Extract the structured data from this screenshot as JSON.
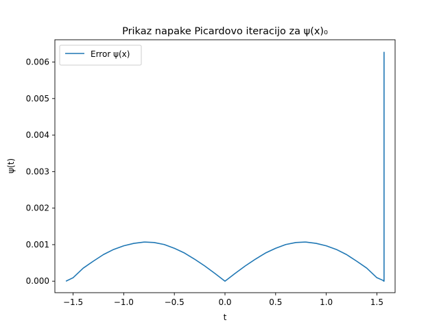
{
  "chart_data": {
    "type": "line",
    "title": "Prikaz napake Picardovo iteracijo za ψ(x)₀",
    "xlabel": "t",
    "ylabel": "ψ(t)",
    "xlim": [
      -1.68,
      1.68
    ],
    "ylim": [
      -0.000315,
      0.00661
    ],
    "xticks": [
      -1.5,
      -1.0,
      -0.5,
      0.0,
      0.5,
      1.0,
      1.5
    ],
    "xtick_labels": [
      "−1.5",
      "−1.0",
      "−0.5",
      "0.0",
      "0.5",
      "1.0",
      "1.5"
    ],
    "yticks": [
      0.0,
      0.001,
      0.002,
      0.003,
      0.004,
      0.005,
      0.006
    ],
    "ytick_labels": [
      "0.000",
      "0.001",
      "0.002",
      "0.003",
      "0.004",
      "0.005",
      "0.006"
    ],
    "legend": {
      "placement": "top-left",
      "entries": [
        "Error ψ(x)"
      ]
    },
    "grid": false,
    "colors": {
      "series": "#1f77b4",
      "axis": "#000000"
    },
    "series": [
      {
        "name": "Error ψ(x)",
        "x": [
          -1.5708,
          -1.5,
          -1.4,
          -1.3,
          -1.2,
          -1.1,
          -1.0,
          -0.9,
          -0.8,
          -0.7854,
          -0.7,
          -0.6,
          -0.5,
          -0.4,
          -0.3,
          -0.2,
          -0.1,
          0.0,
          0.1,
          0.2,
          0.3,
          0.4,
          0.5,
          0.6,
          0.7,
          0.7854,
          0.8,
          0.9,
          1.0,
          1.1,
          1.2,
          1.3,
          1.4,
          1.5,
          1.5608,
          1.5658,
          1.5708,
          1.5708
        ],
        "y": [
          0.0,
          9.47e-05,
          0.000357,
          0.000548,
          0.000729,
          0.000868,
          0.000968,
          0.001035,
          0.00107,
          0.00107,
          0.001059,
          0.001003,
          0.0009,
          0.000771,
          0.000602,
          0.000417,
          0.000213,
          0.0,
          0.000213,
          0.000417,
          0.000602,
          0.000771,
          0.0009,
          0.001003,
          0.001059,
          0.00107,
          0.00107,
          0.001035,
          0.000968,
          0.000868,
          0.000729,
          0.000548,
          0.000357,
          9.47e-05,
          2.17e-05,
          5.3e-06,
          0.0,
          0.00628
        ]
      }
    ]
  }
}
